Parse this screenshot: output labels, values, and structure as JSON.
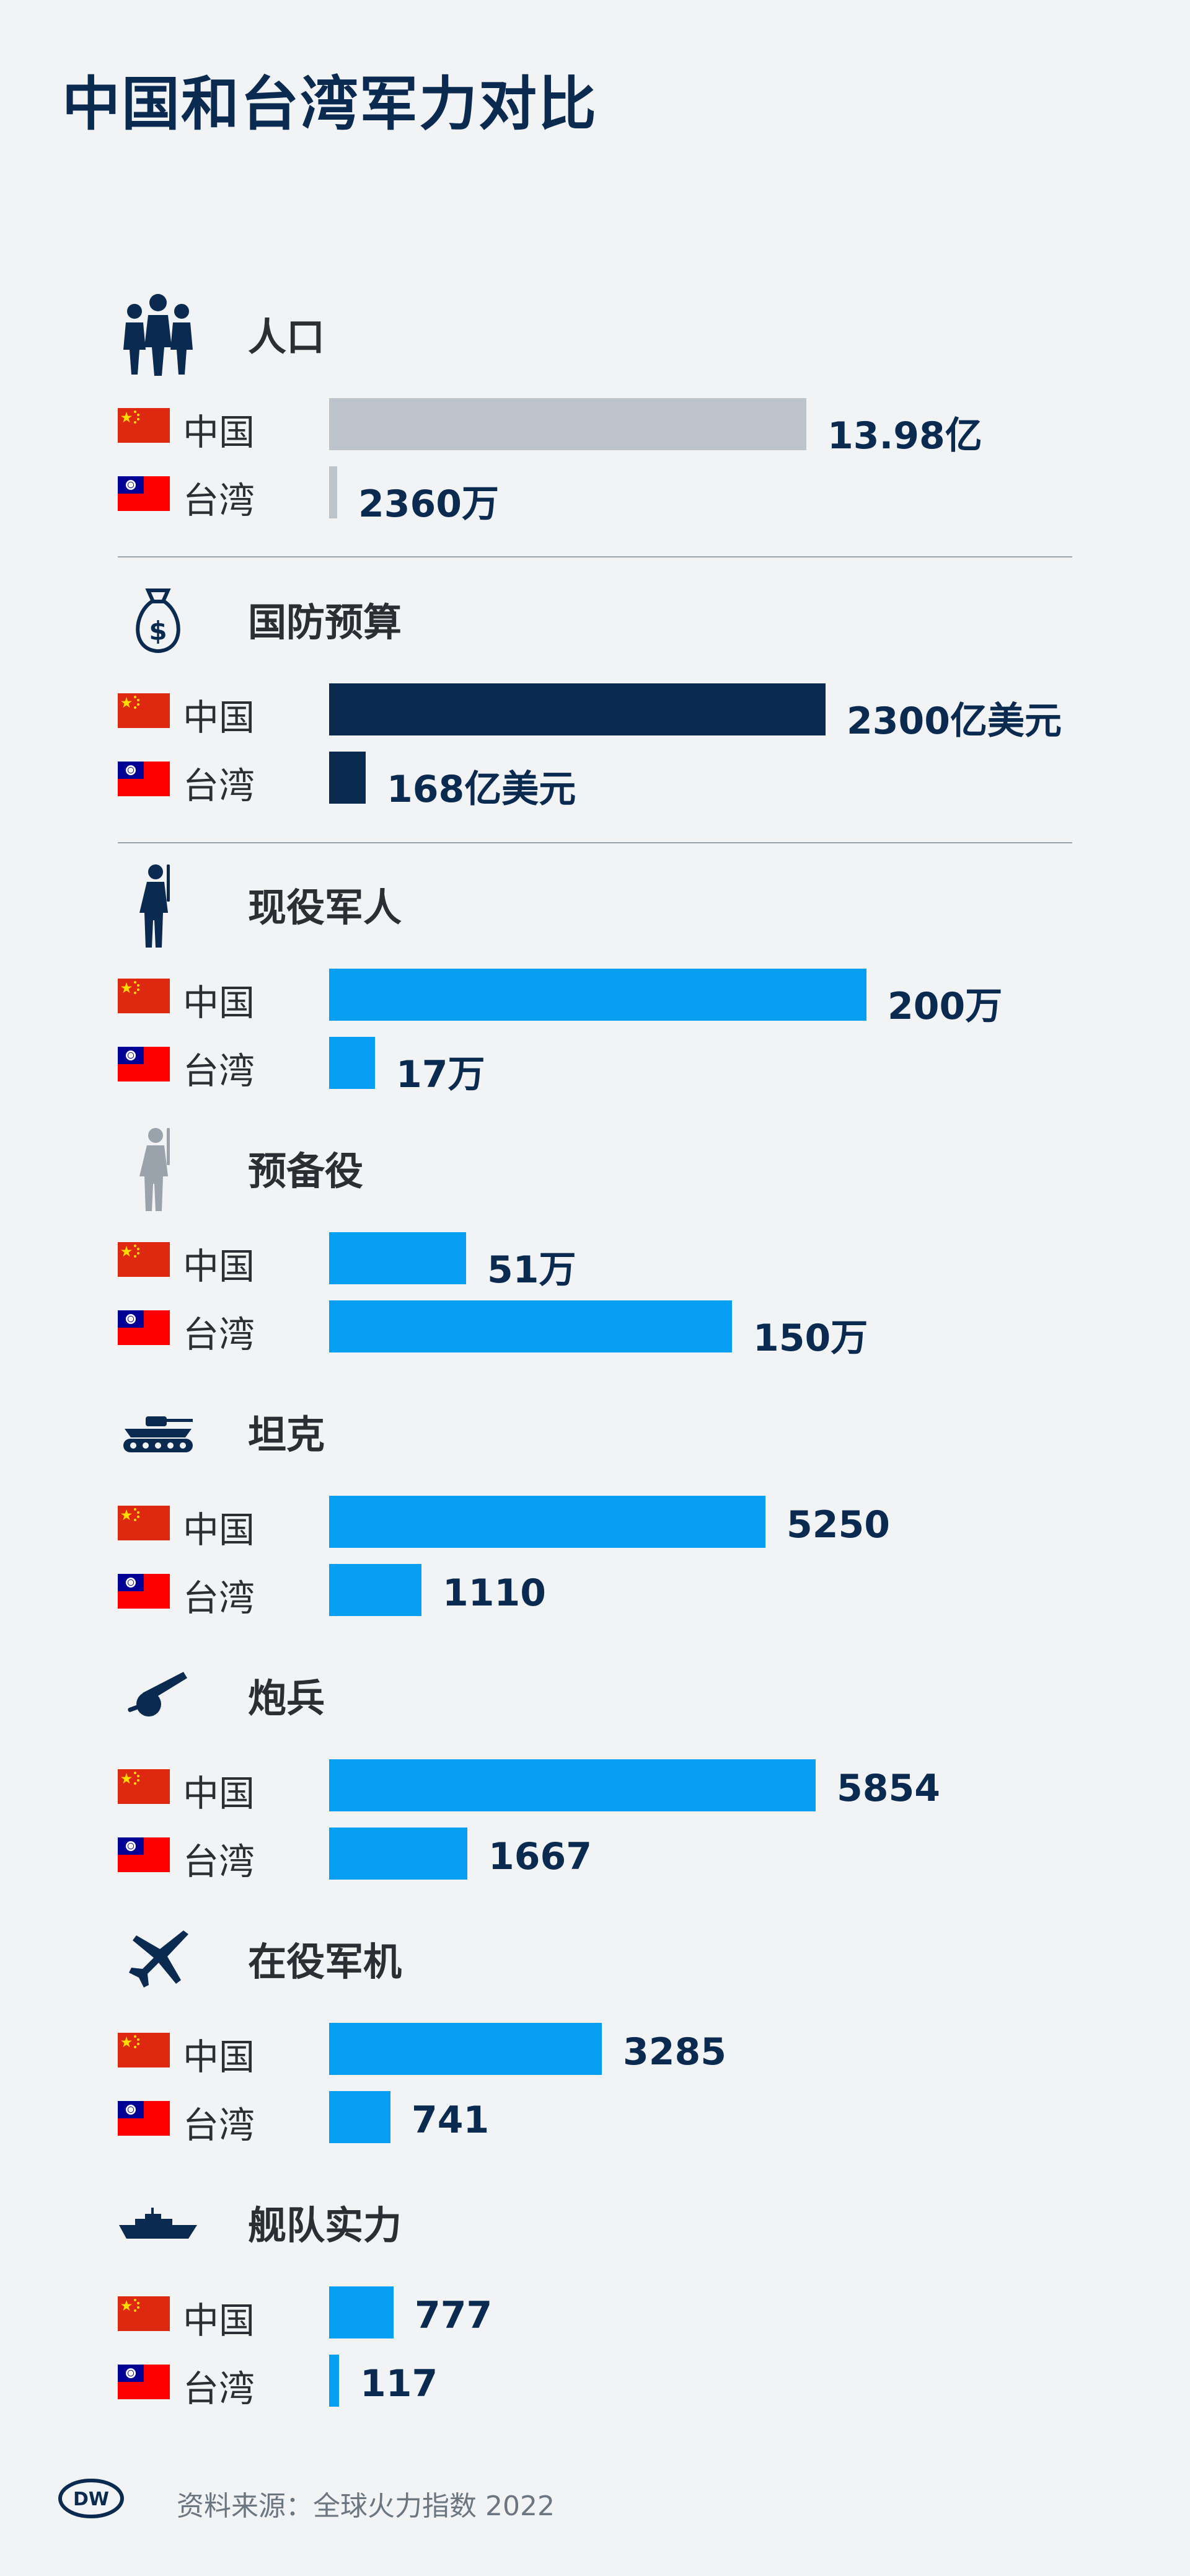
{
  "title": "中国和台湾军力对比",
  "source": "资料来源：全球火力指数 2022",
  "logo": "DW",
  "colors": {
    "background": "#f1f3f5",
    "population_bar": "#bcc3ca",
    "budget_bar": "#0b2a4f",
    "military_bar": "#079ff4"
  },
  "chart_data": {
    "type": "bar",
    "orientation": "horizontal",
    "title": "中国和台湾军力对比",
    "series_names": [
      "中国",
      "台湾"
    ],
    "groups": [
      {
        "category": "人口",
        "icon": "people-icon",
        "color": "#bcc3ca",
        "max": 1398000000,
        "rows": [
          {
            "country": "中国",
            "value": 1398000000,
            "label": "13.98亿"
          },
          {
            "country": "台湾",
            "value": 23600000,
            "label": "2360万"
          }
        ]
      },
      {
        "category": "国防预算",
        "icon": "money-bag-icon",
        "color": "#0b2a4f",
        "max": 230000000000,
        "rows": [
          {
            "country": "中国",
            "value": 230000000000,
            "label": "2300亿美元"
          },
          {
            "country": "台湾",
            "value": 16800000000,
            "label": "168亿美元"
          }
        ]
      },
      {
        "category": "现役军人",
        "icon": "soldier-icon",
        "color": "#079ff4",
        "max": 6000,
        "rows": [
          {
            "country": "中国",
            "value": 2000000,
            "label": "200万"
          },
          {
            "country": "台湾",
            "value": 170000,
            "label": "17万"
          }
        ]
      },
      {
        "category": "预备役",
        "icon": "reserve-soldier-icon",
        "color": "#079ff4",
        "max": 6000,
        "rows": [
          {
            "country": "中国",
            "value": 510000,
            "label": "51万"
          },
          {
            "country": "台湾",
            "value": 1500000,
            "label": "150万"
          }
        ]
      },
      {
        "category": "坦克",
        "icon": "tank-icon",
        "color": "#079ff4",
        "max": 6000,
        "rows": [
          {
            "country": "中国",
            "value": 5250,
            "label": "5250"
          },
          {
            "country": "台湾",
            "value": 1110,
            "label": "1110"
          }
        ]
      },
      {
        "category": "炮兵",
        "icon": "artillery-icon",
        "color": "#079ff4",
        "max": 6000,
        "rows": [
          {
            "country": "中国",
            "value": 5854,
            "label": "5854"
          },
          {
            "country": "台湾",
            "value": 1667,
            "label": "1667"
          }
        ]
      },
      {
        "category": "在役军机",
        "icon": "fighter-jet-icon",
        "color": "#079ff4",
        "max": 6000,
        "rows": [
          {
            "country": "中国",
            "value": 3285,
            "label": "3285"
          },
          {
            "country": "台湾",
            "value": 741,
            "label": "741"
          }
        ]
      },
      {
        "category": "舰队实力",
        "icon": "warship-icon",
        "color": "#079ff4",
        "max": 6000,
        "rows": [
          {
            "country": "中国",
            "value": 777,
            "label": "777"
          },
          {
            "country": "台湾",
            "value": 117,
            "label": "117"
          }
        ]
      }
    ]
  }
}
